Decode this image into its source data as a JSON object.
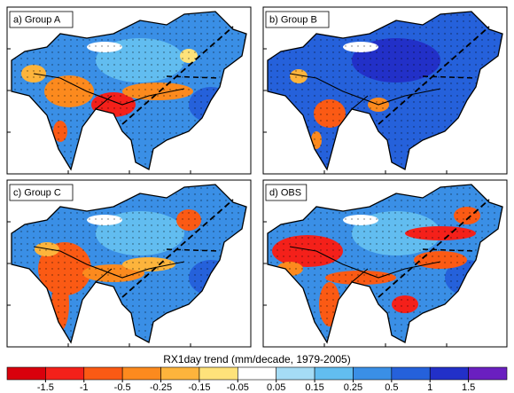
{
  "panels": [
    {
      "label": "a) Group A"
    },
    {
      "label": "b) Group B"
    },
    {
      "label": "c) Group C"
    },
    {
      "label": "d) OBS"
    }
  ],
  "colorbar": {
    "title": "RX1day trend (mm/decade, 1979-2005)",
    "ticks": [
      -1.5,
      -1,
      -0.5,
      -0.25,
      -0.15,
      -0.05,
      0.05,
      0.15,
      0.25,
      0.5,
      1,
      1.5
    ],
    "colors": [
      "#d9000c",
      "#f4201a",
      "#fb5a14",
      "#fc8a1e",
      "#fdb43c",
      "#fee27a",
      "#ffffff",
      "#a5dcf5",
      "#62bdf0",
      "#3a8fe6",
      "#2561db",
      "#2230c8",
      "#6a1fc0"
    ]
  }
}
